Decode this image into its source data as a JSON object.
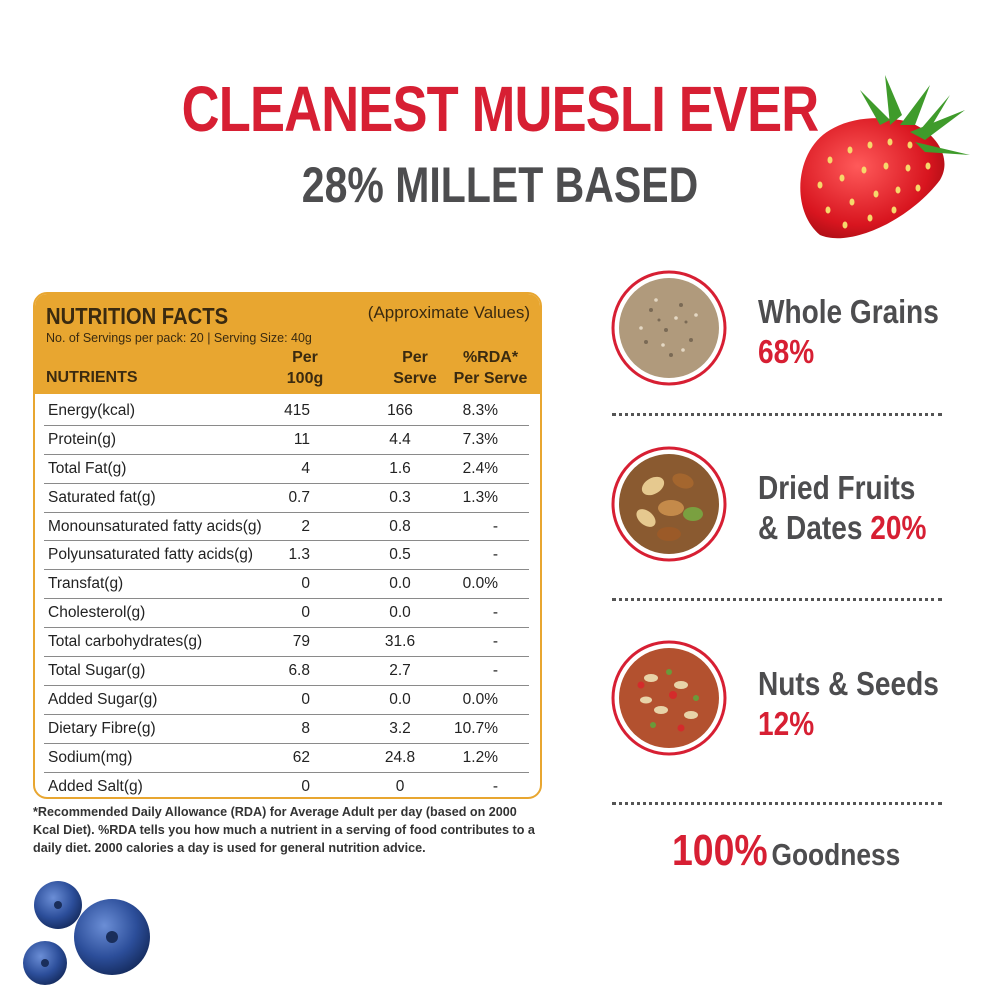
{
  "header": {
    "title": "CLEANEST MUESLI EVER",
    "subtitle": "28% MILLET BASED"
  },
  "nutrition": {
    "title": "NUTRITION FACTS",
    "approx": "(Approximate Values)",
    "serving": "No. of Servings per pack: 20 | Serving Size: 40g",
    "headers": {
      "nutrients": "NUTRIENTS",
      "per100": "Per 100g",
      "perServe": "Per Serve",
      "rda": "%RDA* Per Serve"
    },
    "rows": [
      {
        "name": "Energy(kcal)",
        "per100": "415",
        "perServe": "166",
        "rda": "8.3%"
      },
      {
        "name": "Protein(g)",
        "per100": "11",
        "perServe": "4.4",
        "rda": "7.3%"
      },
      {
        "name": "Total Fat(g)",
        "per100": "4",
        "perServe": "1.6",
        "rda": "2.4%"
      },
      {
        "name": "Saturated fat(g)",
        "per100": "0.7",
        "perServe": "0.3",
        "rda": "1.3%"
      },
      {
        "name": "Monounsaturated fatty acids(g)",
        "per100": "2",
        "perServe": "0.8",
        "rda": "-"
      },
      {
        "name": "Polyunsaturated fatty acids(g)",
        "per100": "1.3",
        "perServe": "0.5",
        "rda": "-"
      },
      {
        "name": "Transfat(g)",
        "per100": "0",
        "perServe": "0.0",
        "rda": "0.0%"
      },
      {
        "name": "Cholesterol(g)",
        "per100": "0",
        "perServe": "0.0",
        "rda": "-"
      },
      {
        "name": "Total carbohydrates(g)",
        "per100": "79",
        "perServe": "31.6",
        "rda": "-"
      },
      {
        "name": "Total Sugar(g)",
        "per100": "6.8",
        "perServe": "2.7",
        "rda": "-"
      },
      {
        "name": "Added Sugar(g)",
        "per100": "0",
        "perServe": "0.0",
        "rda": "0.0%"
      },
      {
        "name": "Dietary Fibre(g)",
        "per100": "8",
        "perServe": "3.2",
        "rda": "10.7%"
      },
      {
        "name": "Sodium(mg)",
        "per100": "62",
        "perServe": "24.8",
        "rda": "1.2%"
      },
      {
        "name": "Added Salt(g)",
        "per100": "0",
        "perServe": "0",
        "rda": "-"
      }
    ],
    "footnote": "*Recommended Daily Allowance (RDA) for Average Adult per day (based on 2000 Kcal Diet). %RDA tells you how much a nutrient in a serving of food contributes to a daily diet. 2000 calories a day is used for general nutrition advice."
  },
  "features": [
    {
      "icon": "whole-grains-image",
      "line1": "Whole Grains",
      "line2": "",
      "pct": "68%"
    },
    {
      "icon": "dried-fruits-image",
      "line1": "Dried Fruits",
      "line2": "& Dates",
      "pct": "20%"
    },
    {
      "icon": "nuts-seeds-image",
      "line1": "Nuts & Seeds",
      "line2": "",
      "pct": "12%"
    }
  ],
  "goodness": {
    "pct": "100%",
    "label": "Goodness"
  },
  "colors": {
    "brand_red": "#d71f33",
    "panel_orange": "#e8a630",
    "text_gray": "#4d4d4f"
  }
}
